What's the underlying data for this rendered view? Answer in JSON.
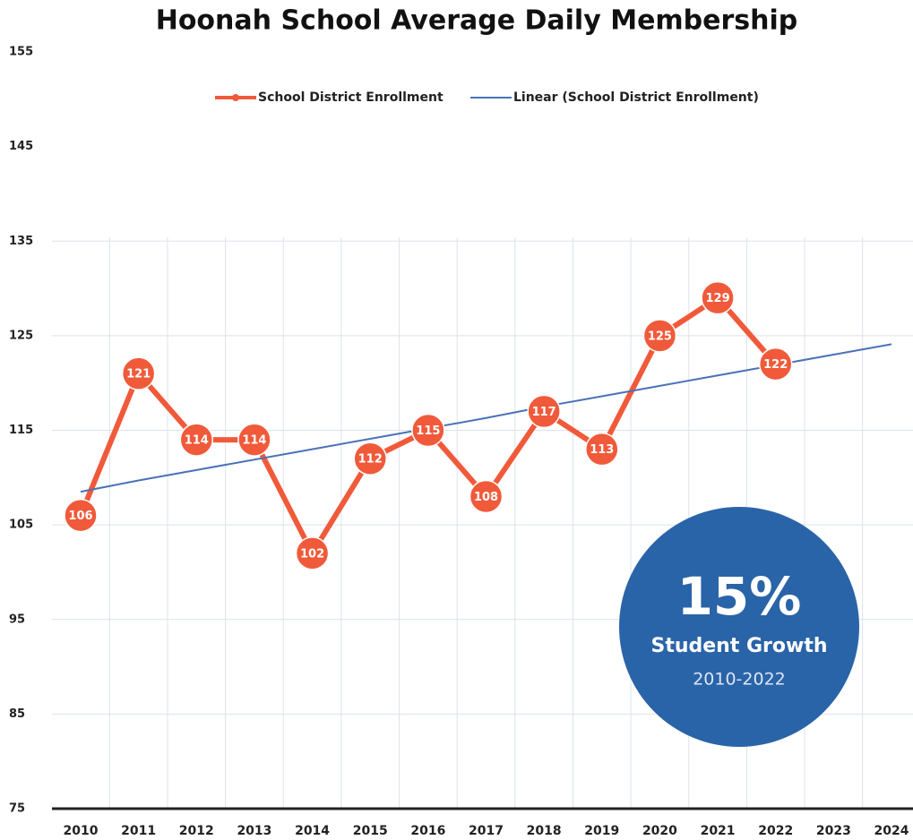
{
  "chart_data": {
    "type": "line",
    "title": "Hoonah School Average Daily Membership",
    "categories": [
      "2010",
      "2011",
      "2012",
      "2013",
      "2014",
      "2015",
      "2016",
      "2017",
      "2018",
      "2019",
      "2020",
      "2021",
      "2022",
      "2023",
      "2024"
    ],
    "series": [
      {
        "name": "School District Enrollment",
        "color": "#f05a3a",
        "values": [
          106,
          121,
          114,
          114,
          102,
          112,
          115,
          108,
          117,
          113,
          125,
          129,
          122,
          null,
          null
        ]
      },
      {
        "name": "Linear (School District Enrollment)",
        "color": "#4a72b8",
        "values": [
          108.5,
          109.7,
          110.8,
          111.9,
          113.0,
          114.1,
          115.2,
          116.3,
          117.5,
          118.6,
          119.7,
          120.8,
          121.9,
          123.0,
          124.1
        ]
      }
    ],
    "ylim": [
      75,
      155
    ],
    "yticks": [
      75,
      85,
      95,
      105,
      115,
      125,
      135,
      145,
      155
    ],
    "grid": true,
    "annotation": {
      "headline": "15%",
      "text": "Student Growth",
      "period": "2010-2022",
      "color": "#2a64a8"
    }
  }
}
